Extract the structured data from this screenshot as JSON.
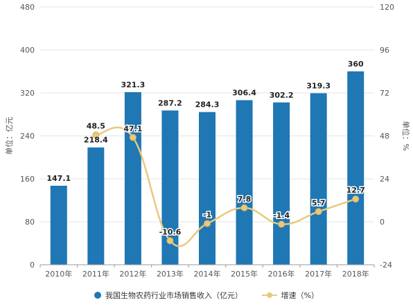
{
  "chart_data": {
    "type": "bar+line",
    "categories": [
      "2010年",
      "2011年",
      "2012年",
      "2013年",
      "2014年",
      "2015年",
      "2016年",
      "2017年",
      "2018年"
    ],
    "series": [
      {
        "name": "我国生物农药行业市场销售收入（亿元）",
        "type": "bar",
        "axis": "left",
        "values": [
          147.1,
          218.4,
          321.3,
          287.2,
          284.3,
          306.4,
          302.2,
          319.3,
          360
        ],
        "labels": [
          "147.1",
          "218.4",
          "321.3",
          "287.2",
          "284.3",
          "306.4",
          "302.2",
          "319.3",
          "360"
        ]
      },
      {
        "name": "增速（%）",
        "type": "line",
        "axis": "right",
        "values": [
          null,
          48.5,
          47.1,
          -10.6,
          -1,
          7.8,
          -1.4,
          5.7,
          12.7
        ],
        "labels": [
          "",
          "48.5",
          "47.1",
          "-10.6",
          "-1",
          "7.8",
          "-1.4",
          "5.7",
          "12.7"
        ]
      }
    ],
    "ylabel_left": "单位：亿元",
    "ylabel_right": "单位：%",
    "ylim_left": [
      0,
      480
    ],
    "ylim_right": [
      -24,
      120
    ],
    "yticks_left": [
      "0",
      "80",
      "160",
      "240",
      "320",
      "400",
      "480"
    ],
    "yticks_right": [
      "-24",
      "0",
      "24",
      "48",
      "72",
      "96",
      "120"
    ],
    "grid": true,
    "legend_position": "bottom",
    "colors": {
      "bar": "#1f77b4",
      "line": "#e8c97e",
      "grid": "#e3e3e3"
    }
  }
}
